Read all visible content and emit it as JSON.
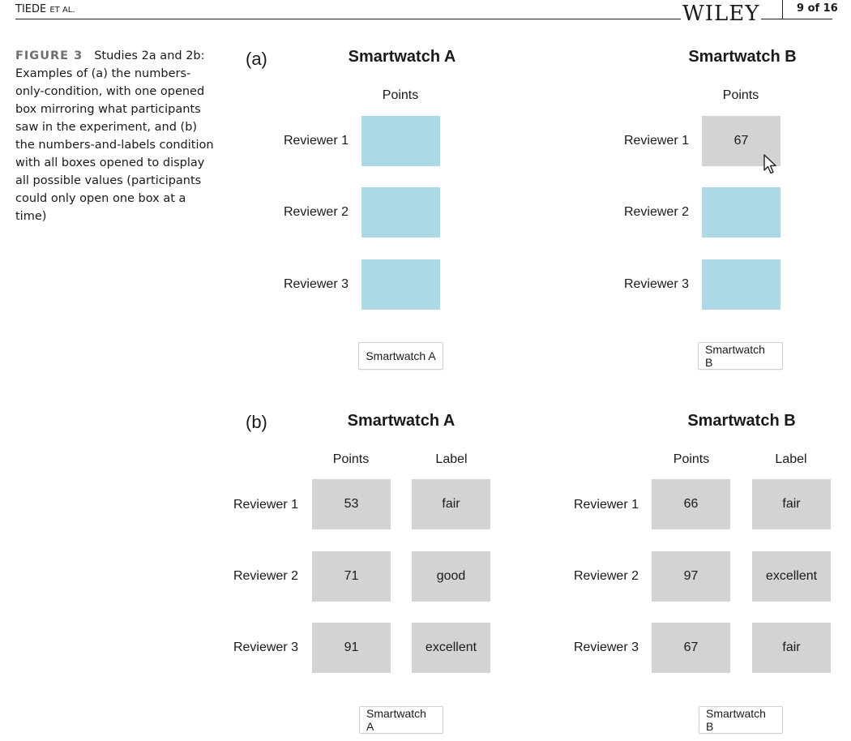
{
  "header": {
    "author": "TIEDE",
    "et_al": "ET AL.",
    "publisher": "WILEY",
    "page": "9 of 16"
  },
  "caption": {
    "label": "FIGURE 3",
    "text": "Studies 2a and 2b: Examples of (a) the numbers-only-condition, with one opened box mirroring what participants saw in the experiment, and (b) the numbers-and-labels condition with all boxes opened to display all possible values (participants could only open one box at a time)"
  },
  "panel_a": {
    "letter": "(a)",
    "smartwatch_a": {
      "title": "Smartwatch A",
      "col_points": "Points",
      "reviewers": [
        "Reviewer 1",
        "Reviewer 2",
        "Reviewer 3"
      ],
      "points": [
        "",
        "",
        ""
      ],
      "button": "Smartwatch A"
    },
    "smartwatch_b": {
      "title": "Smartwatch B",
      "col_points": "Points",
      "reviewers": [
        "Reviewer 1",
        "Reviewer 2",
        "Reviewer 3"
      ],
      "points": [
        "67",
        "",
        ""
      ],
      "button": "Smartwatch B"
    }
  },
  "panel_b": {
    "letter": "(b)",
    "smartwatch_a": {
      "title": "Smartwatch A",
      "col_points": "Points",
      "col_label": "Label",
      "reviewers": [
        "Reviewer 1",
        "Reviewer 2",
        "Reviewer 3"
      ],
      "points": [
        "53",
        "71",
        "91"
      ],
      "labels": [
        "fair",
        "good",
        "excellent"
      ],
      "button": "Smartwatch A"
    },
    "smartwatch_b": {
      "title": "Smartwatch B",
      "col_points": "Points",
      "col_label": "Label",
      "reviewers": [
        "Reviewer 1",
        "Reviewer 2",
        "Reviewer 3"
      ],
      "points": [
        "66",
        "97",
        "67"
      ],
      "labels": [
        "fair",
        "excellent",
        "fair"
      ],
      "button": "Smartwatch B"
    }
  },
  "colors": {
    "closed_box": "#add8e6",
    "opened_box": "#d3d3d3",
    "caption_label": "#6d6e71"
  },
  "icons": {
    "cursor": "mouse-pointer-icon"
  }
}
